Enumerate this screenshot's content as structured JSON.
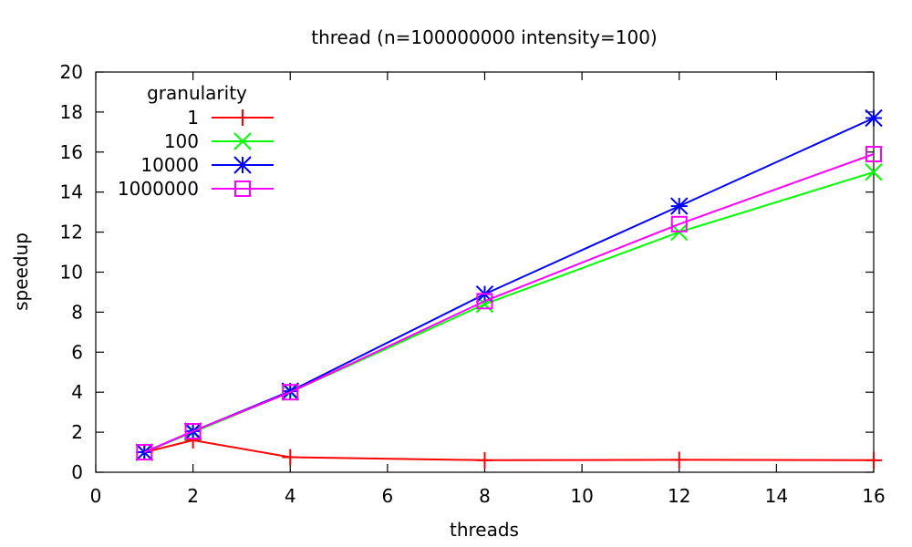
{
  "chart_data": {
    "type": "line",
    "title": "thread (n=100000000 intensity=100)",
    "xlabel": "threads",
    "ylabel": "speedup",
    "xlim": [
      0,
      16
    ],
    "ylim": [
      0,
      20
    ],
    "xticks": [
      0,
      2,
      4,
      6,
      8,
      10,
      12,
      14,
      16
    ],
    "yticks": [
      0,
      2,
      4,
      6,
      8,
      10,
      12,
      14,
      16,
      18,
      20
    ],
    "grid": false,
    "legend": {
      "title": "granularity",
      "position": "top-left"
    },
    "x": [
      1,
      2,
      4,
      8,
      12,
      16
    ],
    "series": [
      {
        "name": "1",
        "color": "#ff0000",
        "marker": "plus",
        "values": [
          1.0,
          1.6,
          0.75,
          0.6,
          0.62,
          0.6
        ]
      },
      {
        "name": "100",
        "color": "#00ff00",
        "marker": "cross",
        "values": [
          1.0,
          2.0,
          4.0,
          8.4,
          12.0,
          15.0
        ]
      },
      {
        "name": "10000",
        "color": "#0000ff",
        "marker": "asterisk",
        "values": [
          1.0,
          2.05,
          4.05,
          8.9,
          13.3,
          17.7
        ]
      },
      {
        "name": "1000000",
        "color": "#ff00ff",
        "marker": "square",
        "values": [
          1.0,
          2.05,
          4.0,
          8.55,
          12.4,
          15.9
        ]
      }
    ]
  }
}
